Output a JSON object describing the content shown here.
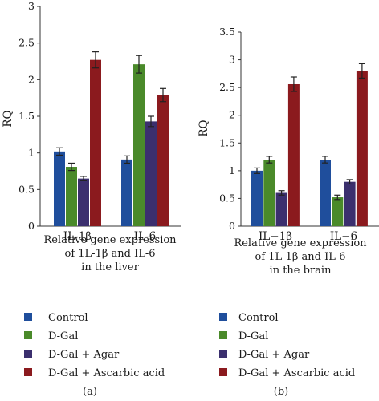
{
  "colors": {
    "Control": "#1f4e9c",
    "D-Gal": "#4a8a2a",
    "D-Gal + Agar": "#3b2f6e",
    "D-Gal + Ascarbic acid": "#8b1a1e"
  },
  "chart_data": [
    {
      "type": "bar",
      "panel_label": "(a)",
      "ylabel": "RQ",
      "ylim": [
        0,
        3
      ],
      "yticks": [
        "0",
        "0.5",
        "1",
        "1.5",
        "2",
        "2.5",
        "3"
      ],
      "categories": [
        "IL-1β",
        "IL-6"
      ],
      "xlabel_lines": [
        "Relative gene expression",
        "of 1L-1β and IL-6",
        "in the liver"
      ],
      "series": [
        {
          "name": "Control",
          "values": [
            1.02,
            0.91
          ],
          "errors": [
            0.05,
            0.05
          ]
        },
        {
          "name": "D-Gal",
          "values": [
            0.81,
            2.21
          ],
          "errors": [
            0.05,
            0.12
          ]
        },
        {
          "name": "D-Gal + Agar",
          "values": [
            0.65,
            1.43
          ],
          "errors": [
            0.03,
            0.07
          ]
        },
        {
          "name": "D-Gal + Ascarbic acid",
          "values": [
            2.27,
            1.79
          ],
          "errors": [
            0.11,
            0.09
          ]
        }
      ],
      "legend": [
        "Control",
        "D-Gal",
        "D-Gal + Agar",
        "D-Gal + Ascarbic acid"
      ]
    },
    {
      "type": "bar",
      "panel_label": "(b)",
      "ylabel": "RQ",
      "ylim": [
        0,
        3.5
      ],
      "yticks": [
        "0",
        "0.5",
        "1",
        "1.5",
        "2",
        "2.5",
        "3",
        "3.5"
      ],
      "categories": [
        "IL−1β",
        "IL−6"
      ],
      "xlabel_lines": [
        "Relative gene expression",
        "of 1L-1β and IL-6",
        "in the brain"
      ],
      "series": [
        {
          "name": "Control",
          "values": [
            1.0,
            1.2
          ],
          "errors": [
            0.05,
            0.06
          ]
        },
        {
          "name": "D-Gal",
          "values": [
            1.2,
            0.52
          ],
          "errors": [
            0.06,
            0.04
          ]
        },
        {
          "name": "D-Gal + Agar",
          "values": [
            0.6,
            0.8
          ],
          "errors": [
            0.04,
            0.04
          ]
        },
        {
          "name": "D-Gal + Ascarbic acid",
          "values": [
            2.56,
            2.8
          ],
          "errors": [
            0.13,
            0.13
          ]
        }
      ],
      "legend": [
        "Control",
        "D-Gal",
        "D-Gal + Agar",
        "D-Gal + Ascarbic acid"
      ]
    }
  ]
}
